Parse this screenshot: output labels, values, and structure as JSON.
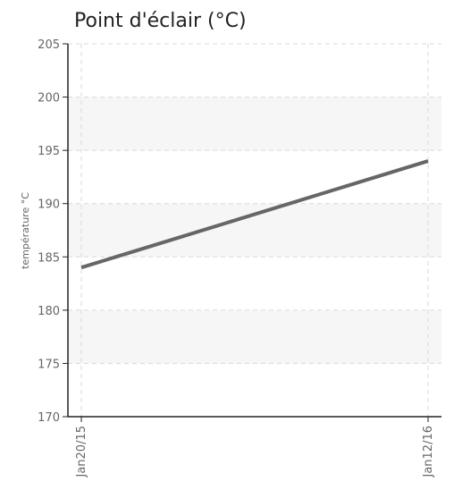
{
  "chart_data": {
    "type": "line",
    "title": "Point d'éclair (°C)",
    "xlabel": "",
    "ylabel": "température °C",
    "x": [
      "Jan20/15",
      "Jan12/16"
    ],
    "series": [
      {
        "name": "",
        "values": [
          184,
          194
        ],
        "color": "#666666"
      }
    ],
    "ylim": [
      170,
      205
    ],
    "yticks": [
      170,
      175,
      180,
      185,
      190,
      195,
      200,
      205
    ],
    "grid": true,
    "band_color": "#f6f6f6",
    "grid_color": "#d9d9d9",
    "axis_color": "#222222"
  }
}
